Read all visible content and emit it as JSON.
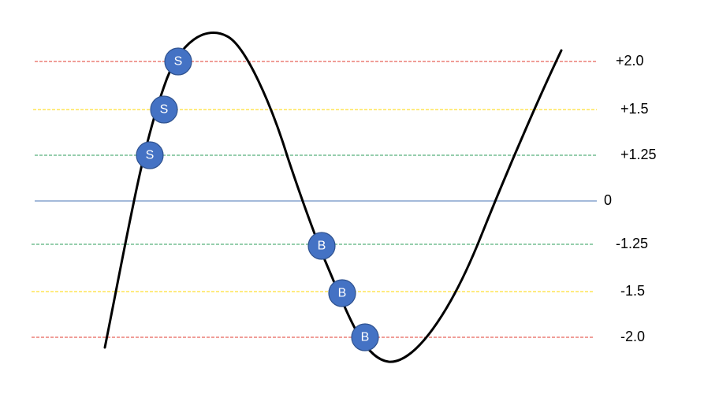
{
  "levels": [
    {
      "id": "plus-2",
      "label": "+2.0",
      "color": "#e03c31",
      "style": "dashed"
    },
    {
      "id": "plus-1-5",
      "label": "+1.5",
      "color": "#ffd700",
      "style": "dashed"
    },
    {
      "id": "plus-1-25",
      "label": "+1.25",
      "color": "#2e9e5b",
      "style": "dashed"
    },
    {
      "id": "zero",
      "label": "0",
      "color": "#4a74b5",
      "style": "solid"
    },
    {
      "id": "minus-1-25",
      "label": "-1.25",
      "color": "#2e9e5b",
      "style": "dashed"
    },
    {
      "id": "minus-1-5",
      "label": "-1.5",
      "color": "#ffd700",
      "style": "dashed"
    },
    {
      "id": "minus-2",
      "label": "-2.0",
      "color": "#e03c31",
      "style": "dashed"
    }
  ],
  "markers": [
    {
      "id": "sell-1",
      "letter": "S",
      "level": "+2.0",
      "color": "#4472c4"
    },
    {
      "id": "sell-2",
      "letter": "S",
      "level": "+1.5",
      "color": "#4472c4"
    },
    {
      "id": "sell-3",
      "letter": "S",
      "level": "+1.25",
      "color": "#4472c4"
    },
    {
      "id": "buy-1",
      "letter": "B",
      "level": "-1.25",
      "color": "#4472c4"
    },
    {
      "id": "buy-2",
      "letter": "B",
      "level": "-1.5",
      "color": "#4472c4"
    },
    {
      "id": "buy-3",
      "letter": "B",
      "level": "-2.0",
      "color": "#4472c4"
    }
  ],
  "curve": {
    "color": "#000000"
  }
}
